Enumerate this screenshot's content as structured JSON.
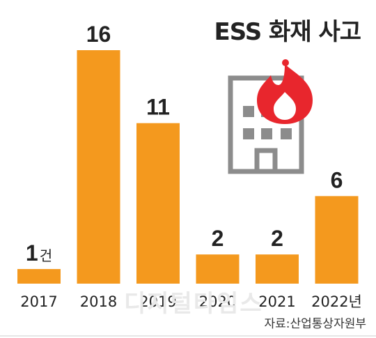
{
  "title": "ESS 화재 사고",
  "source": "자료:산업통상자원부",
  "watermark": "디지털타임스",
  "unit": "건",
  "colors": {
    "bar": "#F4991E",
    "text": "#222222",
    "icon_gray": "#8C8C8C",
    "fire": "#E8262D"
  },
  "icons": [
    "building-icon",
    "fire-icon"
  ],
  "chart_data": {
    "type": "bar",
    "title": "ESS 화재 사고",
    "categories": [
      "2017",
      "2018",
      "2019",
      "2020",
      "2021",
      "2022년"
    ],
    "values": [
      1,
      16,
      11,
      2,
      2,
      6
    ],
    "value_labels": [
      "1",
      "16",
      "11",
      "2",
      "2",
      "6"
    ],
    "xlabel": "",
    "ylabel": "",
    "ylim": [
      0,
      16
    ],
    "grid": false,
    "legend": "none"
  }
}
